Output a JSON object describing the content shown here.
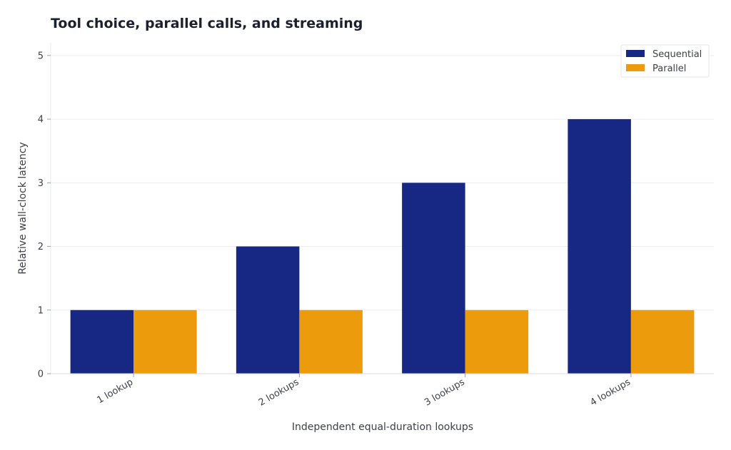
{
  "chart_data": {
    "type": "bar",
    "title": "Tool choice, parallel calls, and streaming",
    "xlabel": "Independent equal-duration lookups",
    "ylabel": "Relative wall-clock latency",
    "categories": [
      "1 lookup",
      "2 lookups",
      "3 lookups",
      "4 lookups"
    ],
    "series": [
      {
        "name": "Sequential",
        "values": [
          1,
          2,
          3,
          4
        ],
        "color": "#172884"
      },
      {
        "name": "Parallel",
        "values": [
          1,
          1,
          1,
          1
        ],
        "color": "#eb9b0c"
      }
    ],
    "ylim": [
      0,
      5.2
    ],
    "yticks": [
      0,
      1,
      2,
      3,
      4,
      5
    ],
    "grid": true,
    "legend_position": "top-right"
  }
}
